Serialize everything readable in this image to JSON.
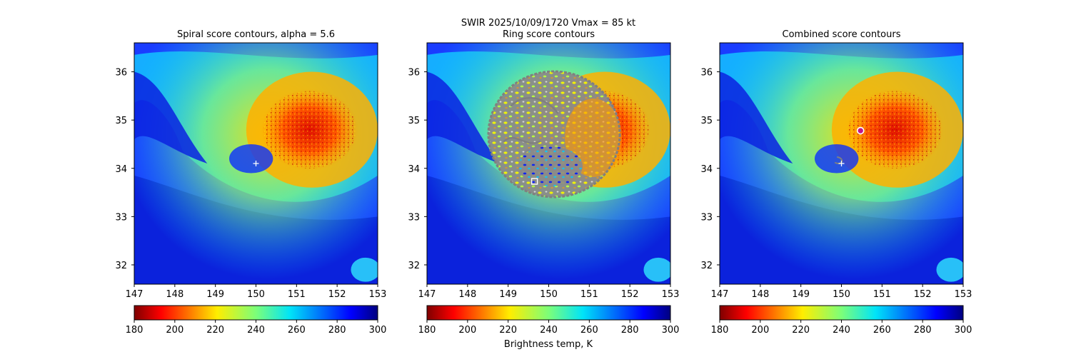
{
  "figure": {
    "suptitle_line1": "SWIR  2025/10/09/1720    Vmax = 85 kt",
    "colorbar_label": "Brightness temp, K"
  },
  "colors": {
    "contour": "#808080",
    "marker": "#ffffff",
    "center_marker": "#c0188c"
  },
  "chart_data": [
    {
      "type": "heatmap",
      "title": "Spiral score contours, alpha =  5.6",
      "xlim": [
        147,
        153
      ],
      "ylim": [
        31.6,
        36.6
      ],
      "xticks": [
        "147",
        "148",
        "149",
        "150",
        "151",
        "152",
        "153"
      ],
      "yticks": [
        "32",
        "33",
        "34",
        "35",
        "36"
      ],
      "colormap": "jet_r",
      "color_range": [
        180,
        300
      ],
      "colorbar_ticks": [
        "180",
        "200",
        "220",
        "240",
        "260",
        "280",
        "300"
      ],
      "overlay": "spiral contours",
      "markers": [
        {
          "kind": "plus",
          "lon": 150.0,
          "lat": 34.1
        }
      ]
    },
    {
      "type": "heatmap",
      "title": "Ring score contours",
      "xlim": [
        147,
        153
      ],
      "ylim": [
        31.6,
        36.6
      ],
      "xticks": [
        "147",
        "148",
        "149",
        "150",
        "151",
        "152",
        "153"
      ],
      "yticks": [
        "32",
        "33",
        "34",
        "35",
        "36"
      ],
      "colormap": "jet_r",
      "color_range": [
        180,
        300
      ],
      "colorbar_ticks": [
        "180",
        "200",
        "220",
        "240",
        "260",
        "280",
        "300"
      ],
      "overlay": "ring contours",
      "markers": [
        {
          "kind": "square",
          "lon": 149.65,
          "lat": 33.73
        }
      ]
    },
    {
      "type": "heatmap",
      "title": "Combined score contours",
      "xlim": [
        147,
        153
      ],
      "ylim": [
        31.6,
        36.6
      ],
      "xticks": [
        "147",
        "148",
        "149",
        "150",
        "151",
        "152",
        "153"
      ],
      "yticks": [
        "32",
        "33",
        "34",
        "35",
        "36"
      ],
      "colormap": "jet_r",
      "color_range": [
        180,
        300
      ],
      "colorbar_ticks": [
        "180",
        "200",
        "220",
        "240",
        "260",
        "280",
        "300"
      ],
      "overlay": "combined contours",
      "markers": [
        {
          "kind": "plus",
          "lon": 150.0,
          "lat": 34.1
        },
        {
          "kind": "circle",
          "lon": 150.47,
          "lat": 34.78
        }
      ]
    }
  ]
}
